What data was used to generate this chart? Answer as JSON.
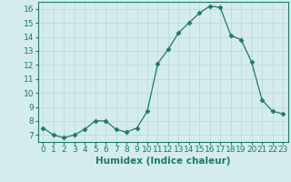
{
  "x": [
    0,
    1,
    2,
    3,
    4,
    5,
    6,
    7,
    8,
    9,
    10,
    11,
    12,
    13,
    14,
    15,
    16,
    17,
    18,
    19,
    20,
    21,
    22,
    23
  ],
  "y": [
    7.5,
    7.0,
    6.8,
    7.0,
    7.4,
    8.0,
    8.0,
    7.4,
    7.2,
    7.5,
    8.7,
    12.1,
    13.1,
    14.3,
    15.0,
    15.7,
    16.2,
    16.1,
    14.1,
    13.8,
    12.2,
    9.5,
    8.7,
    8.5
  ],
  "line_color": "#1a7a6e",
  "marker": "D",
  "marker_size": 2.5,
  "bg_color": "#d5ecec",
  "grid_color": "#b8d8d8",
  "xlabel": "Humidex (Indice chaleur)",
  "xlim": [
    -0.5,
    23.5
  ],
  "ylim": [
    6.5,
    16.5
  ],
  "yticks": [
    7,
    8,
    9,
    10,
    11,
    12,
    13,
    14,
    15,
    16
  ],
  "xticks": [
    0,
    1,
    2,
    3,
    4,
    5,
    6,
    7,
    8,
    9,
    10,
    11,
    12,
    13,
    14,
    15,
    16,
    17,
    18,
    19,
    20,
    21,
    22,
    23
  ],
  "tick_label_fontsize": 6.5,
  "xlabel_fontsize": 7.5,
  "tick_color": "#1a7a6e",
  "axis_color": "#1a7a6e"
}
